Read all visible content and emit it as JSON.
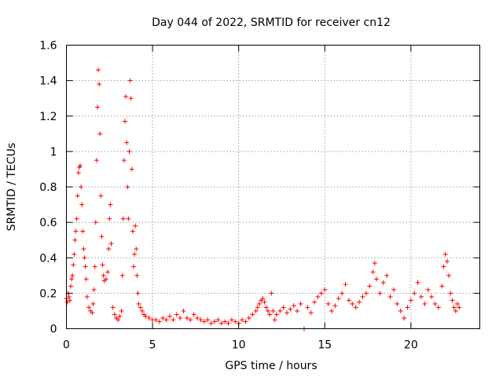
{
  "chart_data": {
    "type": "scatter",
    "title": "Day 044 of 2022, SRMTID for receiver cn12",
    "xlabel": "GPS time / hours",
    "ylabel": "SRMTID / TECUs",
    "xlim": [
      0,
      24
    ],
    "ylim": [
      0,
      1.6
    ],
    "xticks": [
      0,
      5,
      10,
      15,
      20
    ],
    "xtick_labels": [
      "0",
      "5",
      "10",
      "15",
      "20"
    ],
    "yticks": [
      0,
      0.2,
      0.4,
      0.6,
      0.8,
      1,
      1.2,
      1.4,
      1.6
    ],
    "ytick_labels": [
      "0",
      "0.2",
      "0.4",
      "0.6",
      "0.8",
      "1",
      "1.2",
      "1.4",
      "1.6"
    ],
    "grid": true,
    "marker": "+",
    "color": "#ff0000",
    "series": [
      {
        "name": "SRMTID",
        "points": [
          [
            0.0,
            0.17
          ],
          [
            0.05,
            0.15
          ],
          [
            0.1,
            0.2
          ],
          [
            0.15,
            0.18
          ],
          [
            0.2,
            0.16
          ],
          [
            0.25,
            0.24
          ],
          [
            0.3,
            0.28
          ],
          [
            0.35,
            0.3
          ],
          [
            0.4,
            0.36
          ],
          [
            0.45,
            0.42
          ],
          [
            0.5,
            0.5
          ],
          [
            0.55,
            0.55
          ],
          [
            0.6,
            0.62
          ],
          [
            0.65,
            0.75
          ],
          [
            0.7,
            0.88
          ],
          [
            0.75,
            0.91
          ],
          [
            0.8,
            0.92
          ],
          [
            0.85,
            0.8
          ],
          [
            0.9,
            0.7
          ],
          [
            0.95,
            0.55
          ],
          [
            1.0,
            0.45
          ],
          [
            1.05,
            0.4
          ],
          [
            1.1,
            0.35
          ],
          [
            1.15,
            0.28
          ],
          [
            1.2,
            0.18
          ],
          [
            1.3,
            0.12
          ],
          [
            1.4,
            0.1
          ],
          [
            1.5,
            0.09
          ],
          [
            1.55,
            0.14
          ],
          [
            1.6,
            0.22
          ],
          [
            1.65,
            0.35
          ],
          [
            1.7,
            0.6
          ],
          [
            1.75,
            0.95
          ],
          [
            1.8,
            1.25
          ],
          [
            1.85,
            1.46
          ],
          [
            1.9,
            1.38
          ],
          [
            1.95,
            1.1
          ],
          [
            2.0,
            0.75
          ],
          [
            2.05,
            0.52
          ],
          [
            2.1,
            0.36
          ],
          [
            2.15,
            0.3
          ],
          [
            2.2,
            0.27
          ],
          [
            2.3,
            0.28
          ],
          [
            2.4,
            0.32
          ],
          [
            2.45,
            0.45
          ],
          [
            2.5,
            0.62
          ],
          [
            2.55,
            0.7
          ],
          [
            2.6,
            0.48
          ],
          [
            2.7,
            0.12
          ],
          [
            2.8,
            0.08
          ],
          [
            2.9,
            0.06
          ],
          [
            3.0,
            0.05
          ],
          [
            3.1,
            0.07
          ],
          [
            3.2,
            0.1
          ],
          [
            3.25,
            0.3
          ],
          [
            3.3,
            0.62
          ],
          [
            3.35,
            0.95
          ],
          [
            3.4,
            1.17
          ],
          [
            3.45,
            1.31
          ],
          [
            3.5,
            1.05
          ],
          [
            3.55,
            0.8
          ],
          [
            3.6,
            0.62
          ],
          [
            3.65,
            1.0
          ],
          [
            3.7,
            1.4
          ],
          [
            3.75,
            1.3
          ],
          [
            3.8,
            0.9
          ],
          [
            3.85,
            0.55
          ],
          [
            3.9,
            0.35
          ],
          [
            3.95,
            0.42
          ],
          [
            4.0,
            0.58
          ],
          [
            4.05,
            0.45
          ],
          [
            4.1,
            0.3
          ],
          [
            4.15,
            0.2
          ],
          [
            4.2,
            0.14
          ],
          [
            4.3,
            0.12
          ],
          [
            4.4,
            0.1
          ],
          [
            4.5,
            0.08
          ],
          [
            4.6,
            0.07
          ],
          [
            4.8,
            0.06
          ],
          [
            5.0,
            0.05
          ],
          [
            5.2,
            0.05
          ],
          [
            5.4,
            0.04
          ],
          [
            5.6,
            0.06
          ],
          [
            5.8,
            0.05
          ],
          [
            6.0,
            0.07
          ],
          [
            6.2,
            0.05
          ],
          [
            6.4,
            0.08
          ],
          [
            6.6,
            0.06
          ],
          [
            6.8,
            0.1
          ],
          [
            7.0,
            0.06
          ],
          [
            7.2,
            0.05
          ],
          [
            7.4,
            0.08
          ],
          [
            7.6,
            0.06
          ],
          [
            7.8,
            0.05
          ],
          [
            8.0,
            0.04
          ],
          [
            8.2,
            0.05
          ],
          [
            8.4,
            0.03
          ],
          [
            8.6,
            0.04
          ],
          [
            8.8,
            0.05
          ],
          [
            9.0,
            0.03
          ],
          [
            9.2,
            0.04
          ],
          [
            9.4,
            0.03
          ],
          [
            9.6,
            0.05
          ],
          [
            9.8,
            0.04
          ],
          [
            10.0,
            0.03
          ],
          [
            10.2,
            0.05
          ],
          [
            10.4,
            0.04
          ],
          [
            10.6,
            0.06
          ],
          [
            10.8,
            0.08
          ],
          [
            11.0,
            0.1
          ],
          [
            11.1,
            0.12
          ],
          [
            11.2,
            0.14
          ],
          [
            11.3,
            0.16
          ],
          [
            11.4,
            0.17
          ],
          [
            11.5,
            0.15
          ],
          [
            11.6,
            0.12
          ],
          [
            11.7,
            0.1
          ],
          [
            11.8,
            0.08
          ],
          [
            11.9,
            0.2
          ],
          [
            12.0,
            0.1
          ],
          [
            12.1,
            0.05
          ],
          [
            12.2,
            0.08
          ],
          [
            12.4,
            0.1
          ],
          [
            12.6,
            0.12
          ],
          [
            12.8,
            0.09
          ],
          [
            13.0,
            0.11
          ],
          [
            13.2,
            0.13
          ],
          [
            13.4,
            0.1
          ],
          [
            13.6,
            0.14
          ],
          [
            13.8,
            0.0
          ],
          [
            14.0,
            0.12
          ],
          [
            14.2,
            0.09
          ],
          [
            14.4,
            0.15
          ],
          [
            14.6,
            0.18
          ],
          [
            14.8,
            0.2
          ],
          [
            15.0,
            0.22
          ],
          [
            15.2,
            0.14
          ],
          [
            15.4,
            0.1
          ],
          [
            15.6,
            0.13
          ],
          [
            15.8,
            0.17
          ],
          [
            16.0,
            0.2
          ],
          [
            16.2,
            0.25
          ],
          [
            16.4,
            0.16
          ],
          [
            16.6,
            0.14
          ],
          [
            16.8,
            0.12
          ],
          [
            17.0,
            0.15
          ],
          [
            17.2,
            0.18
          ],
          [
            17.4,
            0.2
          ],
          [
            17.6,
            0.24
          ],
          [
            17.8,
            0.32
          ],
          [
            17.9,
            0.37
          ],
          [
            18.0,
            0.28
          ],
          [
            18.2,
            0.2
          ],
          [
            18.4,
            0.26
          ],
          [
            18.6,
            0.3
          ],
          [
            18.8,
            0.18
          ],
          [
            19.0,
            0.22
          ],
          [
            19.2,
            0.14
          ],
          [
            19.4,
            0.1
          ],
          [
            19.6,
            0.06
          ],
          [
            19.8,
            0.12
          ],
          [
            20.0,
            0.16
          ],
          [
            20.2,
            0.2
          ],
          [
            20.4,
            0.26
          ],
          [
            20.6,
            0.18
          ],
          [
            20.8,
            0.14
          ],
          [
            21.0,
            0.22
          ],
          [
            21.2,
            0.18
          ],
          [
            21.4,
            0.14
          ],
          [
            21.6,
            0.12
          ],
          [
            21.8,
            0.24
          ],
          [
            21.9,
            0.35
          ],
          [
            22.0,
            0.42
          ],
          [
            22.1,
            0.38
          ],
          [
            22.2,
            0.3
          ],
          [
            22.3,
            0.2
          ],
          [
            22.4,
            0.16
          ],
          [
            22.5,
            0.12
          ],
          [
            22.6,
            0.1
          ],
          [
            22.7,
            0.14
          ],
          [
            22.8,
            0.12
          ]
        ]
      }
    ]
  }
}
